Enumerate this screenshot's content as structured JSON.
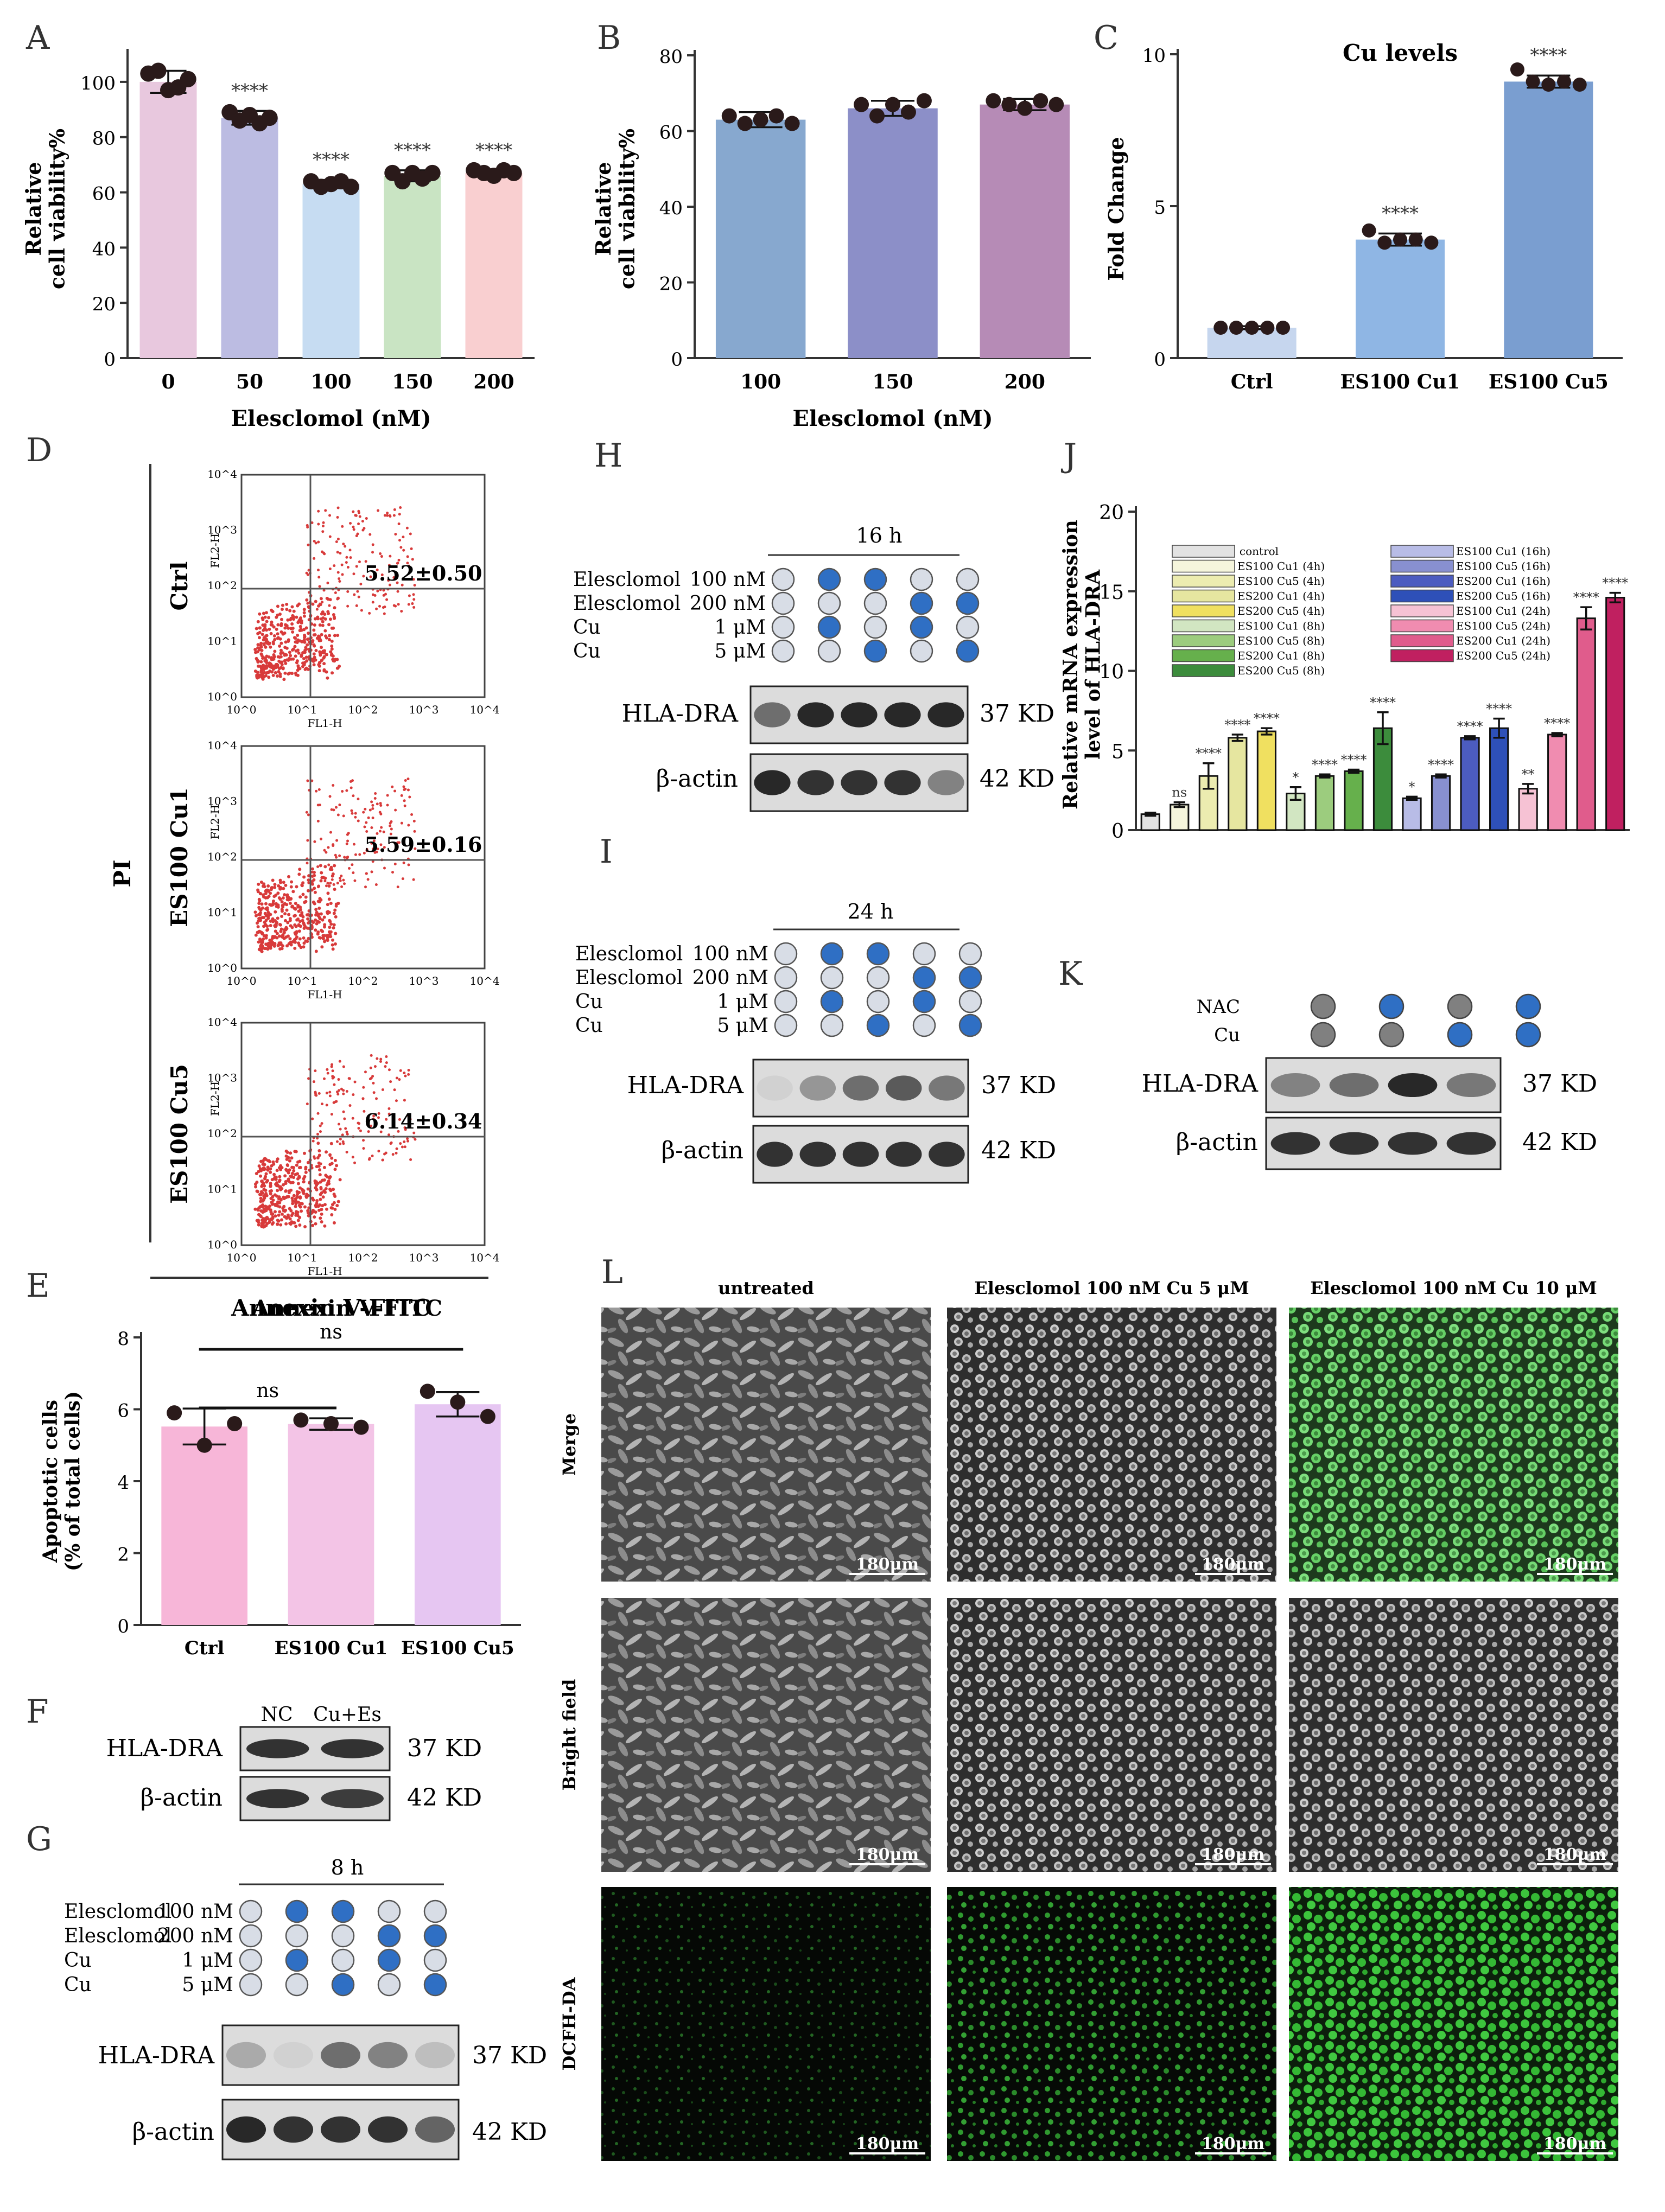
{
  "panel_letters": [
    "A",
    "B",
    "C",
    "D",
    "E",
    "F",
    "G",
    "H",
    "I",
    "J",
    "K",
    "L"
  ],
  "colors": {
    "dot_blue": "#2f6fc4",
    "dot_grey": "#d8dde6",
    "dot_dark": "#808080",
    "flow_red": "#d83a3a",
    "cell_green": "#2c6b2c"
  },
  "chart_data": [
    {
      "id": "A",
      "type": "bar",
      "xlabel": "Elesclomol (nM)",
      "ylabel": "Relative cell viability%",
      "ylim": [
        0,
        110
      ],
      "yticks": [
        0,
        20,
        40,
        60,
        80,
        100
      ],
      "categories": [
        "0",
        "50",
        "100",
        "150",
        "200"
      ],
      "values": [
        100,
        87,
        63,
        66,
        67
      ],
      "errors": [
        4,
        2.5,
        1.5,
        2,
        1
      ],
      "significance": [
        "",
        "****",
        "****",
        "****",
        "****"
      ],
      "colors": [
        "#e8c8de",
        "#bcbce2",
        "#c6dcf2",
        "#c9e4c3",
        "#f9cfd0"
      ],
      "points": [
        [
          103,
          104,
          97,
          98,
          101
        ],
        [
          89,
          86,
          88,
          85,
          87
        ],
        [
          64,
          62,
          63,
          64,
          62
        ],
        [
          67,
          64,
          67,
          65,
          67
        ],
        [
          68,
          67,
          66,
          68,
          67
        ]
      ]
    },
    {
      "id": "B",
      "type": "bar",
      "xlabel": "Elesclomol (nM)",
      "ylabel": "Relative cell viability%",
      "ylim": [
        0,
        80
      ],
      "yticks": [
        0,
        20,
        40,
        60,
        80
      ],
      "categories": [
        "100",
        "150",
        "200"
      ],
      "values": [
        63,
        66,
        67
      ],
      "errors": [
        2,
        2,
        1.5
      ],
      "significance": [
        "",
        "",
        ""
      ],
      "colors": [
        "#87a8cf",
        "#8c8fc8",
        "#b68bb6"
      ],
      "points": [
        [
          64,
          62,
          63,
          64,
          62
        ],
        [
          67,
          64,
          67,
          65,
          68
        ],
        [
          68,
          67,
          66,
          68,
          67
        ]
      ]
    },
    {
      "id": "C",
      "type": "bar",
      "title": "Cu levels",
      "xlabel": "",
      "ylabel": "Fold Change",
      "ylim": [
        0,
        10
      ],
      "yticks": [
        0,
        5,
        10
      ],
      "categories": [
        "Ctrl",
        "ES100 Cu1",
        "ES100 Cu5"
      ],
      "values": [
        1,
        3.9,
        9.1
      ],
      "errors": [
        0.05,
        0.2,
        0.2
      ],
      "significance": [
        "",
        "****",
        "****"
      ],
      "colors": [
        "#c6d6ee",
        "#8fb6e4",
        "#7a9ed0"
      ],
      "points": [
        [
          1,
          1,
          1,
          1,
          1
        ],
        [
          4.2,
          3.8,
          3.9,
          3.9,
          3.8
        ],
        [
          9.5,
          9.1,
          9,
          9.1,
          9
        ]
      ]
    },
    {
      "id": "E",
      "type": "bar",
      "title": "Annexin V-FITC",
      "xlabel": "",
      "ylabel": "Apoptotic cells (% of total cells)",
      "ylim": [
        0,
        8
      ],
      "yticks": [
        0,
        2,
        4,
        6,
        8
      ],
      "categories": [
        "Ctrl",
        "ES100 Cu1",
        "ES100 Cu5"
      ],
      "values": [
        5.52,
        5.59,
        6.14
      ],
      "errors": [
        0.5,
        0.16,
        0.34
      ],
      "significance": [
        "",
        "",
        ""
      ],
      "colors": [
        "#f7b6d8",
        "#f3c4e6",
        "#e6c6f2"
      ],
      "points": [
        [
          5.9,
          5.0,
          5.6
        ],
        [
          5.7,
          5.6,
          5.5
        ],
        [
          6.5,
          6.2,
          5.8
        ]
      ],
      "comparisons": [
        {
          "label": "ns",
          "from": 0,
          "to": 1
        },
        {
          "label": "ns",
          "from": 0,
          "to": 2
        }
      ]
    },
    {
      "id": "J",
      "type": "bar",
      "xlabel": "",
      "ylabel": "Relative mRNA expression level of HLA-DRA",
      "ylim": [
        0,
        20
      ],
      "yticks": [
        0,
        5,
        10,
        15,
        20
      ],
      "categories": [
        "control",
        "ES100 Cu1 (4h)",
        "ES100 Cu5 (4h)",
        "ES200 Cu1 (4h)",
        "ES200 Cu5 (4h)",
        "ES100 Cu1 (8h)",
        "ES100 Cu5 (8h)",
        "ES200 Cu1 (8h)",
        "ES200 Cu5 (8h)",
        "ES100 Cu1 (16h)",
        "ES100 Cu5 (16h)",
        "ES200 Cu1 (16h)",
        "ES200 Cu5 (16h)",
        "ES100 Cu1 (24h)",
        "ES100 Cu5 (24h)",
        "ES200 Cu1 (24h)",
        "ES200 Cu5 (24h)"
      ],
      "values": [
        1,
        1.6,
        3.4,
        5.8,
        6.2,
        2.3,
        3.4,
        3.7,
        6.4,
        2.0,
        3.4,
        5.8,
        6.4,
        2.6,
        6.0,
        13.3,
        14.6
      ],
      "errors": [
        0.1,
        0.15,
        0.8,
        0.2,
        0.2,
        0.4,
        0.1,
        0.1,
        1.0,
        0.1,
        0.1,
        0.1,
        0.6,
        0.3,
        0.1,
        0.7,
        0.3
      ],
      "significance": [
        "",
        "ns",
        "****",
        "****",
        "****",
        "*",
        "****",
        "****",
        "****",
        "*",
        "****",
        "****",
        "****",
        "**",
        "****",
        "****",
        "****"
      ],
      "colors": [
        "#e2e2e2",
        "#f5f5dc",
        "#ececb0",
        "#e6e6a0",
        "#f0e060",
        "#d2e6c2",
        "#9ccc7e",
        "#66b04c",
        "#3c8c3c",
        "#b8bce6",
        "#8890d0",
        "#4c5cc0",
        "#2e50b8",
        "#f6c2d4",
        "#f08cb0",
        "#e05c8c",
        "#c02060"
      ]
    }
  ],
  "flow": {
    "y_axis_label": "PI",
    "x_axis_title": "Annexin V-FITC",
    "x_label": "FL1-H",
    "y_label": "FL2-H",
    "tick_labels": [
      "10^0",
      "10^1",
      "10^2",
      "10^3",
      "10^4"
    ],
    "plots": [
      {
        "name": "Ctrl",
        "value": "5.52±0.50"
      },
      {
        "name": "ES100 Cu1",
        "value": "5.59±0.16"
      },
      {
        "name": "ES100 Cu5",
        "value": "6.14±0.34"
      }
    ]
  },
  "blot_F": {
    "lanes": [
      "NC",
      "Cu+Es"
    ],
    "bands": [
      {
        "name": "HLA-DRA",
        "size": "37 KD"
      },
      {
        "name": "β-actin",
        "size": "42 KD"
      }
    ]
  },
  "blot_G": {
    "time": "8 h",
    "rows": [
      {
        "name": "Elesclomol",
        "dose": "100 nM",
        "on": [
          0,
          1,
          1,
          0,
          0
        ]
      },
      {
        "name": "Elesclomol",
        "dose": "200 nM",
        "on": [
          0,
          0,
          0,
          1,
          1
        ]
      },
      {
        "name": "Cu",
        "dose": "1 μM",
        "on": [
          0,
          1,
          0,
          1,
          0
        ]
      },
      {
        "name": "Cu",
        "dose": "5 μM",
        "on": [
          0,
          0,
          1,
          0,
          1
        ]
      }
    ],
    "bands": [
      {
        "name": "HLA-DRA",
        "size": "37 KD"
      },
      {
        "name": "β-actin",
        "size": "42 KD"
      }
    ]
  },
  "blot_H": {
    "time": "16 h",
    "rows": [
      {
        "name": "Elesclomol",
        "dose": "100 nM",
        "on": [
          0,
          1,
          1,
          0,
          0
        ]
      },
      {
        "name": "Elesclomol",
        "dose": "200 nM",
        "on": [
          0,
          0,
          0,
          1,
          1
        ]
      },
      {
        "name": "Cu",
        "dose": "1 μM",
        "on": [
          0,
          1,
          0,
          1,
          0
        ]
      },
      {
        "name": "Cu",
        "dose": "5 μM",
        "on": [
          0,
          0,
          1,
          0,
          1
        ]
      }
    ],
    "bands": [
      {
        "name": "HLA-DRA",
        "size": "37 KD"
      },
      {
        "name": "β-actin",
        "size": "42 KD"
      }
    ]
  },
  "blot_I": {
    "time": "24 h",
    "rows": [
      {
        "name": "Elesclomol",
        "dose": "100 nM",
        "on": [
          0,
          1,
          1,
          0,
          0
        ]
      },
      {
        "name": "Elesclomol",
        "dose": "200 nM",
        "on": [
          0,
          0,
          0,
          1,
          1
        ]
      },
      {
        "name": "Cu",
        "dose": "1 μM",
        "on": [
          0,
          1,
          0,
          1,
          0
        ]
      },
      {
        "name": "Cu",
        "dose": "5 μM",
        "on": [
          0,
          0,
          1,
          0,
          1
        ]
      }
    ],
    "bands": [
      {
        "name": "HLA-DRA",
        "size": "37 KD"
      },
      {
        "name": "β-actin",
        "size": "42 KD"
      }
    ]
  },
  "blot_K": {
    "rows": [
      {
        "name": "NAC",
        "on": [
          0,
          1,
          0,
          1
        ]
      },
      {
        "name": "Cu",
        "on": [
          0,
          0,
          1,
          1
        ]
      }
    ],
    "bands": [
      {
        "name": "HLA-DRA",
        "size": "37 KD"
      },
      {
        "name": "β-actin",
        "size": "42 KD"
      }
    ]
  },
  "micro": {
    "columns": [
      "untreated",
      "Elesclomol 100 nM  Cu 5 μM",
      "Elesclomol 100 nM  Cu 10 μM"
    ],
    "rows": [
      "Merge",
      "Bright field",
      "DCFH-DA"
    ],
    "scale": "180μm"
  }
}
